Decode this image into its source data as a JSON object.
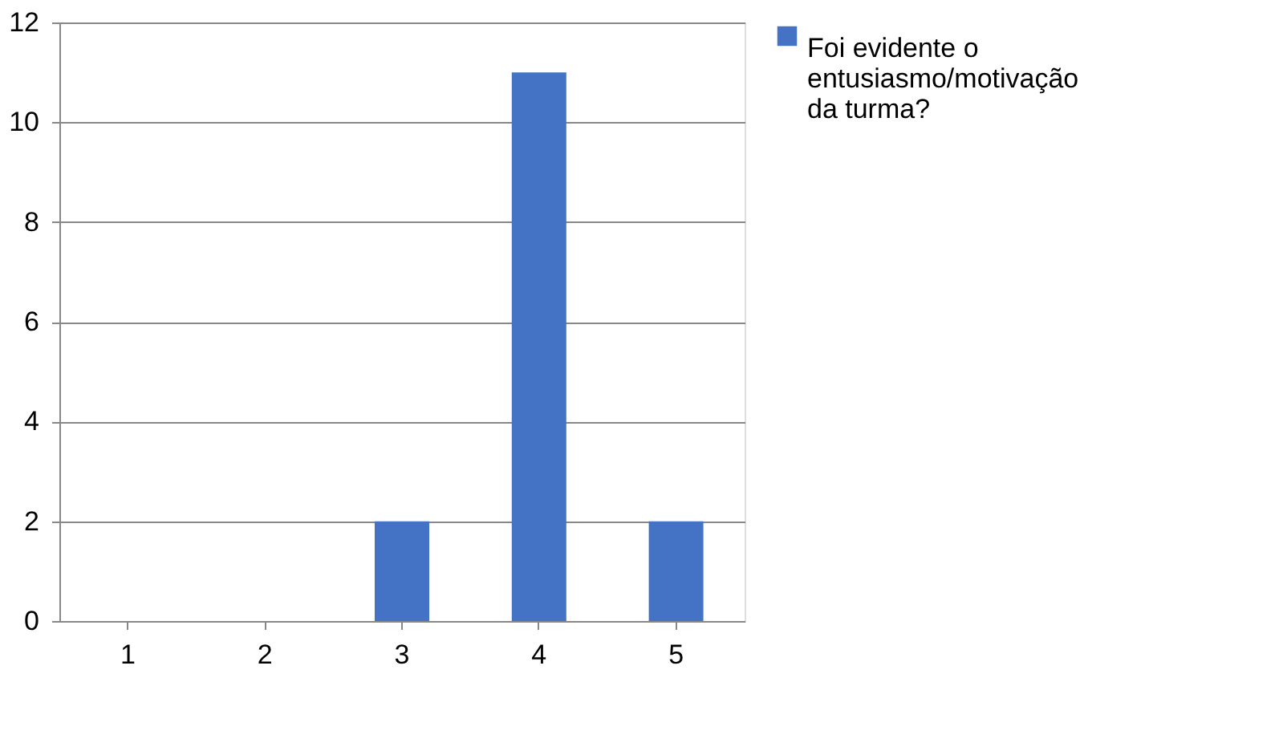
{
  "chart_data": {
    "type": "bar",
    "categories": [
      "1",
      "2",
      "3",
      "4",
      "5"
    ],
    "series": [
      {
        "name": "Foi evidente o entusiasmo/motivação da turma?",
        "color": "#4472c4",
        "values": [
          0,
          0,
          2,
          11,
          2
        ]
      }
    ],
    "ylim": [
      0,
      12
    ],
    "yticks": [
      0,
      2,
      4,
      6,
      8,
      10,
      12
    ],
    "grid": "y",
    "legend": "right"
  }
}
